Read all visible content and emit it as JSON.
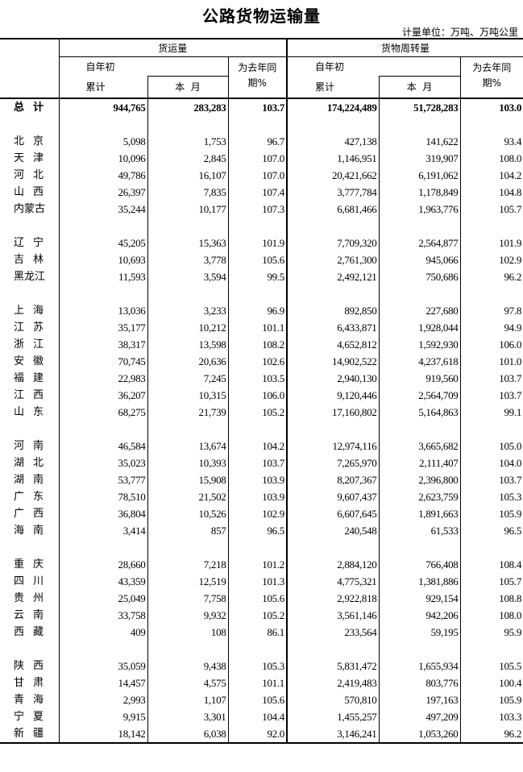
{
  "title": "公路货物运输量",
  "unit": "计量单位：万吨、万吨公里",
  "header": {
    "freight_volume": "货运量",
    "turnover": "货物周转量",
    "ytd_top": "自年初",
    "ytd_bottom": "累计",
    "this_month": "本  月",
    "yoy_top": "为去年同",
    "yoy_bottom": "期%"
  },
  "groups": [
    [
      {
        "name": "总  计",
        "values": [
          "944,765",
          "283,283",
          "103.7",
          "174,224,489",
          "51,728,283",
          "103.0"
        ],
        "total": true
      }
    ],
    [
      {
        "name": "北  京",
        "values": [
          "5,098",
          "1,753",
          "96.7",
          "427,138",
          "141,622",
          "93.4"
        ]
      },
      {
        "name": "天  津",
        "values": [
          "10,096",
          "2,845",
          "107.0",
          "1,146,951",
          "319,907",
          "108.0"
        ]
      },
      {
        "name": "河  北",
        "values": [
          "49,786",
          "16,107",
          "107.0",
          "20,421,662",
          "6,191,062",
          "104.2"
        ]
      },
      {
        "name": "山  西",
        "values": [
          "26,397",
          "7,835",
          "107.4",
          "3,777,784",
          "1,178,849",
          "104.8"
        ]
      },
      {
        "name": "内蒙古",
        "values": [
          "35,244",
          "10,177",
          "107.3",
          "6,681,466",
          "1,963,776",
          "105.7"
        ]
      }
    ],
    [
      {
        "name": "辽  宁",
        "values": [
          "45,205",
          "15,363",
          "101.9",
          "7,709,320",
          "2,564,877",
          "101.9"
        ]
      },
      {
        "name": "吉  林",
        "values": [
          "10,693",
          "3,778",
          "105.6",
          "2,761,300",
          "945,066",
          "102.9"
        ]
      },
      {
        "name": "黑龙江",
        "values": [
          "11,593",
          "3,594",
          "99.5",
          "2,492,121",
          "750,686",
          "96.2"
        ]
      }
    ],
    [
      {
        "name": "上  海",
        "values": [
          "13,036",
          "3,233",
          "96.9",
          "892,850",
          "227,680",
          "97.8"
        ]
      },
      {
        "name": "江  苏",
        "values": [
          "35,177",
          "10,212",
          "101.1",
          "6,433,871",
          "1,928,044",
          "94.9"
        ]
      },
      {
        "name": "浙  江",
        "values": [
          "38,317",
          "13,598",
          "108.2",
          "4,652,812",
          "1,592,930",
          "106.0"
        ]
      },
      {
        "name": "安  徽",
        "values": [
          "70,745",
          "20,636",
          "102.6",
          "14,902,522",
          "4,237,618",
          "101.0"
        ]
      },
      {
        "name": "福  建",
        "values": [
          "22,983",
          "7,245",
          "103.5",
          "2,940,130",
          "919,560",
          "103.7"
        ]
      },
      {
        "name": "江  西",
        "values": [
          "36,207",
          "10,315",
          "106.0",
          "9,120,446",
          "2,564,709",
          "103.7"
        ]
      },
      {
        "name": "山  东",
        "values": [
          "68,275",
          "21,739",
          "105.2",
          "17,160,802",
          "5,164,863",
          "99.1"
        ]
      }
    ],
    [
      {
        "name": "河  南",
        "values": [
          "46,584",
          "13,674",
          "104.2",
          "12,974,116",
          "3,665,682",
          "105.0"
        ]
      },
      {
        "name": "湖  北",
        "values": [
          "35,023",
          "10,393",
          "103.7",
          "7,265,970",
          "2,111,407",
          "104.0"
        ]
      },
      {
        "name": "湖  南",
        "values": [
          "53,777",
          "15,908",
          "103.9",
          "8,207,367",
          "2,396,800",
          "103.7"
        ]
      },
      {
        "name": "广  东",
        "values": [
          "78,510",
          "21,502",
          "103.9",
          "9,607,437",
          "2,623,759",
          "105.3"
        ]
      },
      {
        "name": "广  西",
        "values": [
          "36,804",
          "10,526",
          "102.9",
          "6,607,645",
          "1,891,663",
          "105.9"
        ]
      },
      {
        "name": "海  南",
        "values": [
          "3,414",
          "857",
          "96.5",
          "240,548",
          "61,533",
          "96.5"
        ]
      }
    ],
    [
      {
        "name": "重  庆",
        "values": [
          "28,660",
          "7,218",
          "101.2",
          "2,884,120",
          "766,408",
          "108.4"
        ]
      },
      {
        "name": "四  川",
        "values": [
          "43,359",
          "12,519",
          "101.3",
          "4,775,321",
          "1,381,886",
          "105.7"
        ]
      },
      {
        "name": "贵  州",
        "values": [
          "25,049",
          "7,758",
          "105.6",
          "2,922,818",
          "929,154",
          "108.8"
        ]
      },
      {
        "name": "云  南",
        "values": [
          "33,758",
          "9,932",
          "105.2",
          "3,561,146",
          "942,206",
          "108.0"
        ]
      },
      {
        "name": "西  藏",
        "values": [
          "409",
          "108",
          "86.1",
          "233,564",
          "59,195",
          "95.9"
        ]
      }
    ],
    [
      {
        "name": "陕  西",
        "values": [
          "35,059",
          "9,438",
          "105.3",
          "5,831,472",
          "1,655,934",
          "105.5"
        ]
      },
      {
        "name": "甘  肃",
        "values": [
          "14,457",
          "4,575",
          "101.1",
          "2,419,483",
          "803,776",
          "100.4"
        ]
      },
      {
        "name": "青  海",
        "values": [
          "2,993",
          "1,107",
          "105.6",
          "570,810",
          "197,163",
          "105.9"
        ]
      },
      {
        "name": "宁  夏",
        "values": [
          "9,915",
          "3,301",
          "104.4",
          "1,455,257",
          "497,209",
          "103.3"
        ]
      },
      {
        "name": "新  疆",
        "values": [
          "18,142",
          "6,038",
          "92.0",
          "3,146,241",
          "1,053,260",
          "96.2"
        ]
      }
    ]
  ]
}
